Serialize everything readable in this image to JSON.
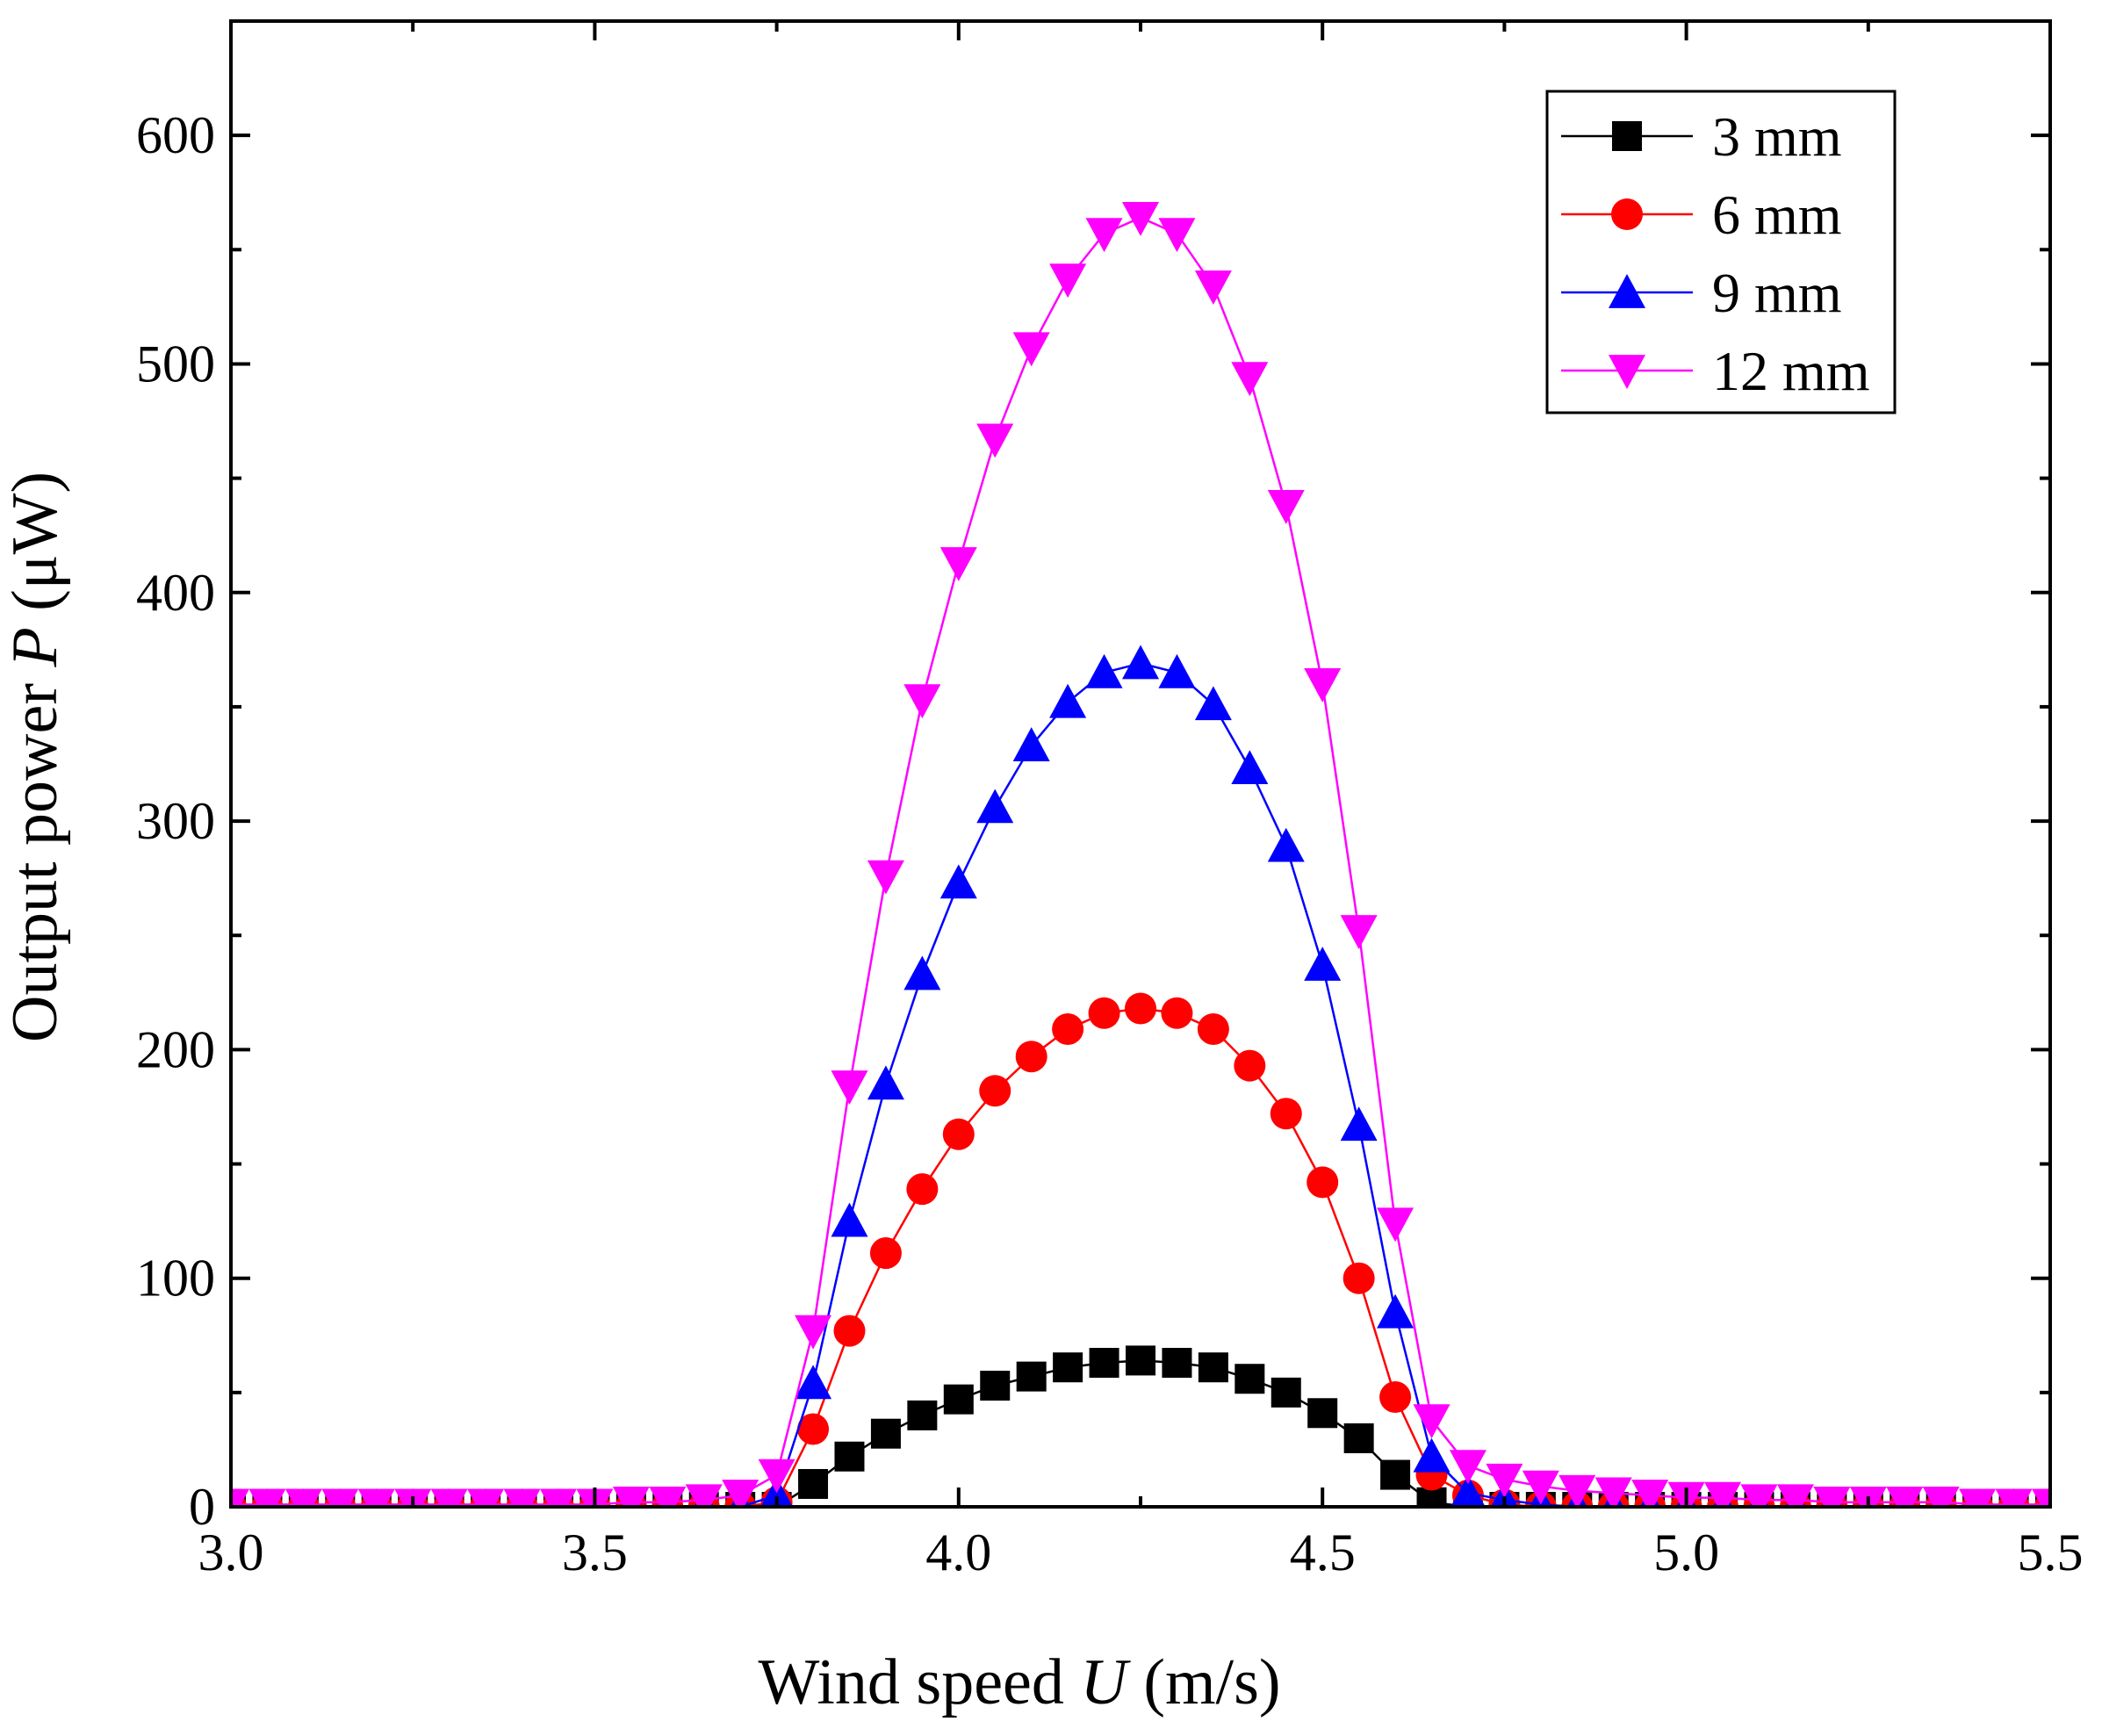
{
  "chart_data": {
    "type": "line",
    "xlabel_parts": [
      "Wind speed ",
      "U",
      " (m/s)"
    ],
    "ylabel_parts": [
      "Output power ",
      "P",
      " (μW)"
    ],
    "xlim": [
      3.0,
      5.5
    ],
    "ylim": [
      0,
      650
    ],
    "xticks": [
      3.0,
      3.5,
      4.0,
      4.5,
      5.0,
      5.5
    ],
    "xtick_labels": [
      "3.0",
      "3.5",
      "4.0",
      "4.5",
      "5.0",
      "5.5"
    ],
    "yticks": [
      0,
      100,
      200,
      300,
      400,
      500,
      600
    ],
    "ytick_labels": [
      "0",
      "100",
      "200",
      "300",
      "400",
      "500",
      "600"
    ],
    "grid": false,
    "legend_position": "top-right",
    "x": [
      3.0,
      3.05,
      3.1,
      3.15,
      3.2,
      3.25,
      3.3,
      3.35,
      3.4,
      3.45,
      3.5,
      3.55,
      3.6,
      3.65,
      3.7,
      3.75,
      3.8,
      3.85,
      3.9,
      3.95,
      4.0,
      4.05,
      4.1,
      4.15,
      4.2,
      4.25,
      4.3,
      4.35,
      4.4,
      4.45,
      4.5,
      4.55,
      4.6,
      4.65,
      4.7,
      4.75,
      4.8,
      4.85,
      4.9,
      4.95,
      5.0,
      5.05,
      5.1,
      5.15,
      5.2,
      5.25,
      5.3,
      5.35,
      5.4,
      5.45,
      5.5
    ],
    "series": [
      {
        "name": "3 mm",
        "color": "#000000",
        "marker": "square",
        "values": [
          0,
          0,
          0,
          0,
          0,
          0,
          0,
          0,
          0,
          0,
          0,
          0,
          0,
          0,
          0,
          0,
          10,
          22,
          32,
          40,
          47,
          53,
          57,
          61,
          63,
          64,
          63,
          61,
          56,
          50,
          41,
          30,
          14,
          2,
          0,
          0,
          0,
          0,
          0,
          0,
          0,
          0,
          0,
          0,
          0,
          0,
          0,
          0,
          0,
          0,
          0
        ]
      },
      {
        "name": "6 mm",
        "color": "#ff0000",
        "marker": "circle",
        "values": [
          0,
          0,
          0,
          0,
          0,
          0,
          0,
          0,
          0,
          0,
          0,
          0,
          0,
          0,
          0,
          2,
          34,
          77,
          111,
          139,
          163,
          182,
          197,
          209,
          216,
          218,
          216,
          209,
          193,
          172,
          142,
          100,
          48,
          14,
          5,
          1,
          0,
          0,
          0,
          0,
          0,
          0,
          0,
          0,
          0,
          0,
          0,
          0,
          0,
          0,
          0
        ]
      },
      {
        "name": "9 mm",
        "color": "#0000ff",
        "marker": "triangle-up",
        "values": [
          0,
          0,
          0,
          0,
          0,
          0,
          0,
          0,
          0,
          0,
          0,
          0,
          0,
          0,
          0,
          5,
          54,
          125,
          185,
          233,
          273,
          306,
          333,
          352,
          365,
          369,
          365,
          351,
          323,
          289,
          237,
          167,
          85,
          22,
          6,
          3,
          1,
          0,
          0,
          0,
          0,
          0,
          0,
          0,
          0,
          0,
          0,
          0,
          0,
          0,
          0
        ]
      },
      {
        "name": "12 mm",
        "color": "#ff00ff",
        "marker": "triangle-down",
        "values": [
          1,
          1,
          1,
          1,
          1,
          1,
          1,
          1,
          1,
          1,
          1,
          2,
          2,
          3,
          5,
          14,
          77,
          184,
          276,
          353,
          413,
          467,
          507,
          537,
          557,
          564,
          557,
          534,
          494,
          438,
          360,
          252,
          124,
          38,
          18,
          12,
          9,
          7,
          6,
          5,
          4,
          4,
          3,
          3,
          2,
          2,
          2,
          2,
          1,
          1,
          1
        ]
      }
    ]
  }
}
